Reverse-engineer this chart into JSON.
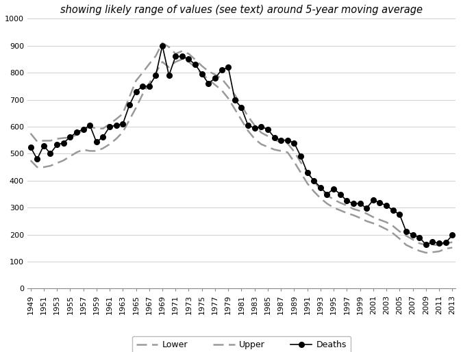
{
  "title": "showing likely range of values (see text) around 5-year moving average",
  "years": [
    1949,
    1950,
    1951,
    1952,
    1953,
    1954,
    1955,
    1956,
    1957,
    1958,
    1959,
    1960,
    1961,
    1962,
    1963,
    1964,
    1965,
    1966,
    1967,
    1968,
    1969,
    1970,
    1971,
    1972,
    1973,
    1974,
    1975,
    1976,
    1977,
    1978,
    1979,
    1980,
    1981,
    1982,
    1983,
    1984,
    1985,
    1986,
    1987,
    1988,
    1989,
    1990,
    1991,
    1992,
    1993,
    1994,
    1995,
    1996,
    1997,
    1998,
    1999,
    2000,
    2001,
    2002,
    2003,
    2004,
    2005,
    2006,
    2007,
    2008,
    2009,
    2010,
    2011,
    2012,
    2013
  ],
  "deaths": [
    524,
    480,
    530,
    500,
    533,
    540,
    561,
    580,
    590,
    605,
    543,
    562,
    600,
    605,
    610,
    680,
    730,
    750,
    750,
    790,
    900,
    790,
    860,
    860,
    850,
    830,
    795,
    760,
    780,
    810,
    820,
    700,
    670,
    605,
    595,
    600,
    590,
    560,
    550,
    550,
    540,
    490,
    430,
    400,
    375,
    350,
    370,
    350,
    325,
    315,
    315,
    298,
    328,
    318,
    308,
    290,
    275,
    212,
    200,
    190,
    163,
    173,
    168,
    170,
    198
  ],
  "lower": [
    475,
    450,
    450,
    455,
    465,
    475,
    490,
    505,
    515,
    510,
    510,
    520,
    535,
    555,
    580,
    625,
    670,
    720,
    760,
    800,
    840,
    820,
    840,
    850,
    840,
    820,
    795,
    775,
    755,
    735,
    705,
    665,
    625,
    585,
    555,
    535,
    525,
    515,
    510,
    505,
    470,
    430,
    390,
    360,
    335,
    315,
    300,
    290,
    280,
    272,
    262,
    250,
    242,
    232,
    220,
    205,
    185,
    162,
    150,
    140,
    133,
    135,
    138,
    148,
    152
  ],
  "upper": [
    575,
    545,
    548,
    548,
    555,
    558,
    560,
    570,
    588,
    600,
    593,
    593,
    610,
    628,
    648,
    710,
    770,
    800,
    832,
    862,
    910,
    895,
    870,
    880,
    870,
    848,
    825,
    805,
    793,
    778,
    748,
    718,
    678,
    638,
    605,
    578,
    565,
    552,
    542,
    538,
    508,
    468,
    432,
    398,
    368,
    346,
    330,
    318,
    308,
    295,
    288,
    278,
    265,
    255,
    246,
    232,
    212,
    196,
    182,
    168,
    162,
    162,
    162,
    168,
    172
  ],
  "ylim": [
    0,
    1000
  ],
  "yticks": [
    0,
    100,
    200,
    300,
    400,
    500,
    600,
    700,
    800,
    900,
    1000
  ],
  "deaths_color": "#000000",
  "band_color": "#999999",
  "background_color": "#ffffff",
  "grid_color": "#d0d0d0",
  "title_fontsize": 10.5,
  "tick_fontsize": 8
}
